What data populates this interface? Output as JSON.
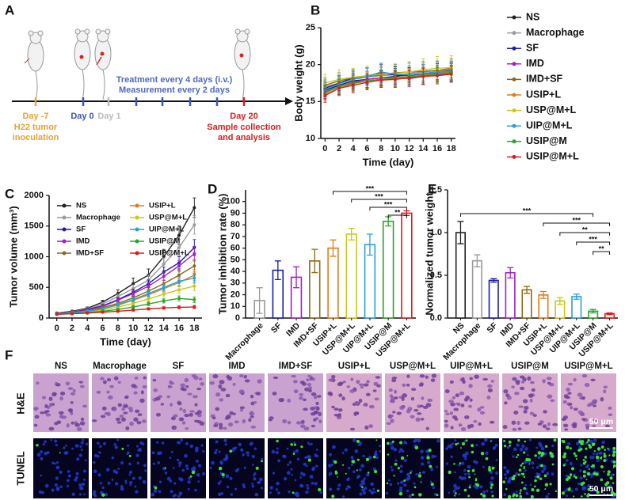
{
  "timeline": {
    "panel": "A",
    "start": {
      "day": "Day -7",
      "note": [
        "H22 tumor",
        "inoculation"
      ]
    },
    "day0": "Day 0",
    "day1": "Day 1",
    "treatment": "Treatment every 4 days (i.v.)",
    "measurement": "Measurement every 2 days",
    "end": {
      "day": "Day 20",
      "note": [
        "Sample collection",
        "and analysis"
      ]
    }
  },
  "chart_data": [
    {
      "type": "line",
      "panel": "B",
      "xlabel": "Time (day)",
      "ylabel": "Body weight (g)",
      "legend": "right",
      "x": [
        0,
        2,
        4,
        6,
        8,
        10,
        12,
        14,
        16,
        18
      ],
      "xlim": [
        -0.6,
        18.6
      ],
      "xticks": [
        0,
        2,
        4,
        6,
        8,
        10,
        12,
        14,
        16,
        18
      ],
      "ylim": [
        10,
        25
      ],
      "yticks": [
        10,
        15,
        20,
        25
      ],
      "series": [
        {
          "name": "NS",
          "color": "#222222",
          "values": [
            16.5,
            17.2,
            17.8,
            18.0,
            18.2,
            18.4,
            18.6,
            18.8,
            19.0,
            19.2
          ],
          "errors": [
            0.9,
            1.0,
            1.0,
            1.1,
            1.0,
            1.1,
            1.0,
            1.2,
            1.1,
            1.2
          ]
        },
        {
          "name": "Macrophage",
          "color": "#9a9a9a",
          "values": [
            17.0,
            17.5,
            18.0,
            18.3,
            18.5,
            18.6,
            18.8,
            19.0,
            19.2,
            19.4
          ],
          "errors": [
            1.0,
            1.1,
            1.0,
            1.2,
            1.1,
            1.2,
            1.1,
            1.2,
            1.3,
            1.2
          ]
        },
        {
          "name": "SF",
          "color": "#1c1ca8",
          "values": [
            16.8,
            17.5,
            18.2,
            18.5,
            18.8,
            18.6,
            18.5,
            18.7,
            18.9,
            19.0
          ],
          "errors": [
            1.0,
            1.0,
            1.1,
            1.1,
            1.2,
            1.1,
            1.0,
            1.1,
            1.2,
            1.1
          ]
        },
        {
          "name": "IMD",
          "color": "#a020c0",
          "values": [
            16.3,
            17.0,
            17.6,
            18.0,
            18.2,
            18.3,
            18.1,
            18.4,
            18.6,
            18.8
          ],
          "errors": [
            0.9,
            1.0,
            1.0,
            1.1,
            1.1,
            1.0,
            1.1,
            1.1,
            1.2,
            1.1
          ]
        },
        {
          "name": "IMD+SF",
          "color": "#8b6a14",
          "values": [
            17.2,
            17.8,
            18.2,
            18.4,
            18.6,
            18.9,
            19.0,
            19.1,
            19.2,
            19.5
          ],
          "errors": [
            1.0,
            1.1,
            1.1,
            1.2,
            1.2,
            1.1,
            1.2,
            1.3,
            1.2,
            1.3
          ]
        },
        {
          "name": "USIP+L",
          "color": "#e07b1a",
          "values": [
            16.0,
            16.8,
            17.4,
            17.8,
            18.0,
            18.2,
            18.4,
            18.6,
            18.8,
            19.0
          ],
          "errors": [
            0.9,
            1.0,
            1.0,
            1.1,
            1.0,
            1.1,
            1.1,
            1.2,
            1.1,
            1.2
          ]
        },
        {
          "name": "USP@M+L",
          "color": "#c8c81a",
          "values": [
            17.5,
            18.0,
            18.3,
            18.5,
            18.7,
            18.8,
            19.0,
            19.3,
            19.5,
            19.6
          ],
          "errors": [
            1.2,
            1.3,
            1.2,
            1.3,
            1.4,
            1.3,
            1.4,
            1.5,
            1.6,
            1.6
          ]
        },
        {
          "name": "UIP@M+L",
          "color": "#2a9fd6",
          "values": [
            16.6,
            17.4,
            18.0,
            18.4,
            19.0,
            18.7,
            18.6,
            18.8,
            19.0,
            19.1
          ],
          "errors": [
            1.0,
            1.0,
            1.1,
            1.1,
            1.2,
            1.1,
            1.1,
            1.2,
            1.2,
            1.2
          ]
        },
        {
          "name": "USIP@M",
          "color": "#2aa52a",
          "values": [
            16.2,
            17.0,
            17.5,
            17.8,
            18.0,
            18.1,
            18.3,
            18.5,
            18.7,
            18.9
          ],
          "errors": [
            0.9,
            1.0,
            1.0,
            1.0,
            1.1,
            1.1,
            1.0,
            1.1,
            1.1,
            1.2
          ]
        },
        {
          "name": "USIP@M+L",
          "color": "#e01a1a",
          "values": [
            15.8,
            16.8,
            17.2,
            17.6,
            17.9,
            18.0,
            18.2,
            18.4,
            18.5,
            18.7
          ],
          "errors": [
            0.9,
            0.9,
            1.0,
            1.0,
            1.0,
            1.1,
            1.0,
            1.1,
            1.1,
            1.1
          ]
        }
      ]
    },
    {
      "type": "line",
      "panel": "C",
      "xlabel": "Time (day)",
      "ylabel": "Tumor volume (mm³)",
      "legend": "upper left",
      "x": [
        0,
        2,
        4,
        6,
        8,
        10,
        12,
        14,
        16,
        18
      ],
      "xlim": [
        -1,
        19
      ],
      "xticks": [
        0,
        2,
        4,
        6,
        8,
        10,
        12,
        14,
        16,
        18
      ],
      "ylim": [
        0,
        2000
      ],
      "yticks": [
        0,
        500,
        1000,
        1500,
        2000
      ],
      "series": [
        {
          "name": "NS",
          "color": "#222222",
          "values": [
            80,
            110,
            160,
            260,
            400,
            560,
            700,
            1000,
            1350,
            1800
          ],
          "errors": [
            15,
            15,
            20,
            30,
            60,
            90,
            100,
            120,
            150,
            160
          ]
        },
        {
          "name": "Macrophage",
          "color": "#9a9a9a",
          "values": [
            75,
            100,
            150,
            230,
            350,
            480,
            620,
            880,
            1150,
            1520
          ],
          "errors": [
            12,
            14,
            18,
            25,
            40,
            60,
            80,
            100,
            130,
            150
          ]
        },
        {
          "name": "SF",
          "color": "#1c1ca8",
          "values": [
            75,
            95,
            140,
            200,
            300,
            420,
            560,
            750,
            900,
            1150
          ],
          "errors": [
            12,
            14,
            16,
            22,
            35,
            50,
            60,
            80,
            100,
            130
          ]
        },
        {
          "name": "IMD",
          "color": "#a020c0",
          "values": [
            70,
            95,
            130,
            190,
            290,
            400,
            520,
            680,
            850,
            1050
          ],
          "errors": [
            12,
            13,
            16,
            22,
            30,
            45,
            55,
            70,
            90,
            120
          ]
        },
        {
          "name": "IMD+SF",
          "color": "#8b6a14",
          "values": [
            70,
            90,
            120,
            170,
            240,
            330,
            440,
            560,
            700,
            850
          ],
          "errors": [
            10,
            12,
            15,
            20,
            28,
            40,
            50,
            60,
            80,
            100
          ]
        },
        {
          "name": "USIP+L",
          "color": "#e07b1a",
          "values": [
            70,
            85,
            110,
            150,
            210,
            290,
            380,
            480,
            580,
            700
          ],
          "errors": [
            10,
            12,
            14,
            18,
            25,
            35,
            45,
            55,
            70,
            90
          ]
        },
        {
          "name": "USP@M+L",
          "color": "#c8c81a",
          "values": [
            65,
            80,
            100,
            130,
            180,
            240,
            310,
            390,
            460,
            520
          ],
          "errors": [
            10,
            11,
            13,
            16,
            22,
            30,
            38,
            45,
            55,
            70
          ]
        },
        {
          "name": "UIP@M+L",
          "color": "#2a9fd6",
          "values": [
            70,
            85,
            110,
            150,
            220,
            300,
            400,
            500,
            600,
            650
          ],
          "errors": [
            10,
            12,
            14,
            18,
            26,
            35,
            45,
            55,
            70,
            80
          ]
        },
        {
          "name": "USIP@M",
          "color": "#2aa52a",
          "values": [
            65,
            75,
            90,
            110,
            140,
            180,
            230,
            280,
            320,
            300
          ],
          "errors": [
            10,
            10,
            12,
            14,
            18,
            22,
            28,
            34,
            40,
            45
          ]
        },
        {
          "name": "USIP@M+L",
          "color": "#e01a1a",
          "values": [
            60,
            70,
            80,
            95,
            110,
            130,
            150,
            165,
            175,
            180
          ],
          "errors": [
            8,
            9,
            10,
            12,
            14,
            16,
            18,
            20,
            22,
            25
          ]
        }
      ]
    },
    {
      "type": "bar",
      "panel": "D",
      "ylabel": "Tumor inhibition rate (%)",
      "categories": [
        "Macrophage",
        "SF",
        "IMD",
        "IMD+SF",
        "USIP+L",
        "USP@M+L",
        "UIP@M+L",
        "USIP@M",
        "USIP@M+L"
      ],
      "values": [
        15,
        41,
        35,
        49,
        60,
        72,
        63,
        83,
        90
      ],
      "errors": [
        11,
        8,
        9,
        10,
        7,
        5,
        9,
        4,
        2
      ],
      "colors": [
        "#9a9a9a",
        "#1c1ca8",
        "#a020c0",
        "#8b6a14",
        "#e07b1a",
        "#c8c81a",
        "#2a9fd6",
        "#2aa52a",
        "#e01a1a"
      ],
      "ylim": [
        0,
        110
      ],
      "yticks": [
        0,
        10,
        20,
        30,
        40,
        50,
        60,
        70,
        80,
        90,
        100
      ],
      "significance": [
        {
          "from": "USIP+L",
          "to": "USIP@M+L",
          "label": "***"
        },
        {
          "from": "USP@M+L",
          "to": "USIP@M+L",
          "label": "***"
        },
        {
          "from": "UIP@M+L",
          "to": "USIP@M+L",
          "label": "***"
        },
        {
          "from": "USIP@M",
          "to": "USIP@M+L",
          "label": "**"
        }
      ]
    },
    {
      "type": "bar",
      "panel": "E",
      "ylabel": "Normalized tumor weight",
      "categories": [
        "NS",
        "Macrophage",
        "SF",
        "IMD",
        "IMD+SF",
        "USIP+L",
        "USP@M+L",
        "UIP@M+L",
        "USIP@M",
        "USIP@M+L"
      ],
      "values": [
        1.0,
        0.67,
        0.44,
        0.53,
        0.33,
        0.27,
        0.2,
        0.25,
        0.08,
        0.05
      ],
      "errors": [
        0.13,
        0.07,
        0.02,
        0.06,
        0.04,
        0.04,
        0.04,
        0.03,
        0.02,
        0.01
      ],
      "colors": [
        "#222222",
        "#9a9a9a",
        "#1c1ca8",
        "#a020c0",
        "#8b6a14",
        "#e07b1a",
        "#c8c81a",
        "#2a9fd6",
        "#2aa52a",
        "#e01a1a"
      ],
      "ylim": [
        0,
        1.5
      ],
      "yticks": [
        {
          "value": 0,
          "label": "0.0"
        },
        0.5,
        {
          "value": 1,
          "label": "1.0"
        },
        1.5
      ],
      "significance": [
        {
          "from": "NS",
          "to": "USIP@M",
          "label": "***"
        },
        {
          "from": "USIP+L",
          "to": "USIP@M+L",
          "label": "***"
        },
        {
          "from": "USP@M+L",
          "to": "USIP@M+L",
          "label": "**"
        },
        {
          "from": "UIP@M+L",
          "to": "USIP@M+L",
          "label": "***"
        },
        {
          "from": "USIP@M",
          "to": "USIP@M+L",
          "label": "**"
        }
      ]
    }
  ],
  "histology": {
    "panel": "F",
    "columns": [
      "NS",
      "Macrophage",
      "SF",
      "IMD",
      "IMD+SF",
      "USIP+L",
      "USP@M+L",
      "UIP@M+L",
      "USIP@M",
      "USIP@M+L"
    ],
    "rows": [
      "H&E",
      "TUNEL"
    ],
    "scale_bar": "50 μm"
  }
}
